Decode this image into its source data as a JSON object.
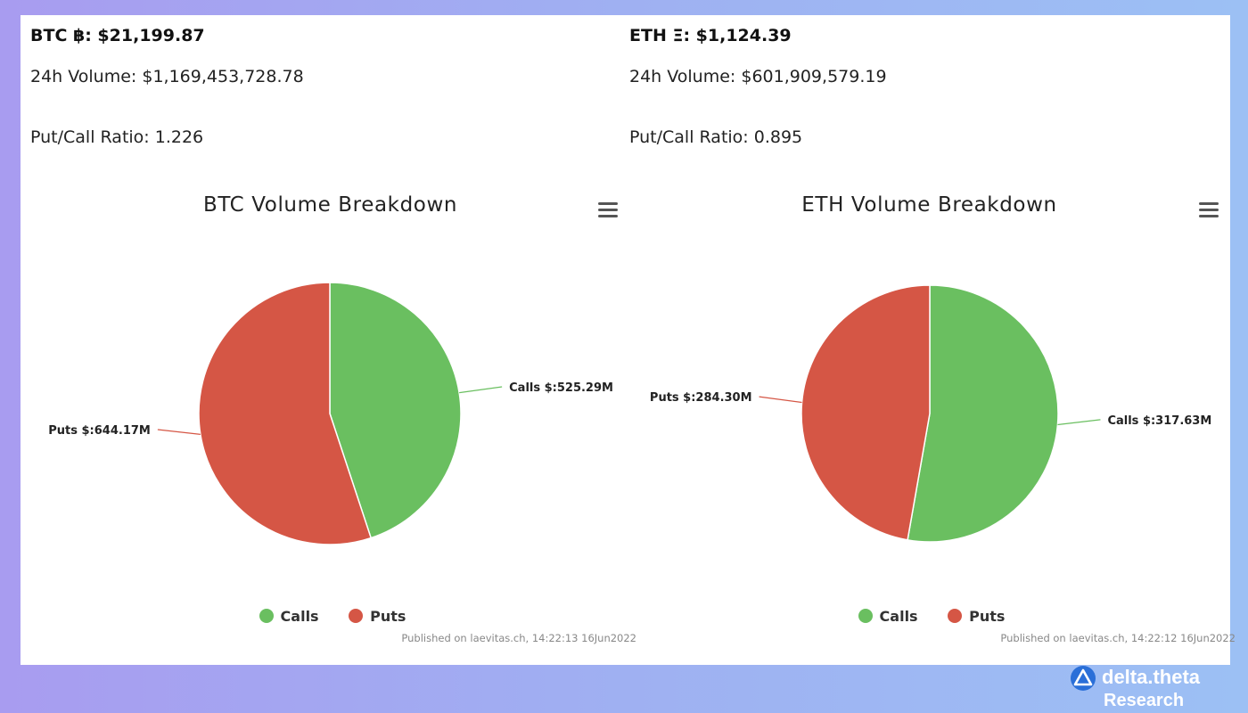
{
  "btc": {
    "price_line": "BTC ฿: $21,199.87",
    "volume_line": "24h Volume: $1,169,453,728.78",
    "ratio_line": "Put/Call Ratio: 1.226",
    "credits": "Published on laevitas.ch, 14:22:13 16Jun2022"
  },
  "eth": {
    "price_line": "ETH Ξ: $1,124.39",
    "volume_line": "24h Volume: $601,909,579.19",
    "ratio_line": "Put/Call Ratio: 0.895",
    "credits": "Published on laevitas.ch, 14:22:12 16Jun2022"
  },
  "legend": {
    "calls": "Calls",
    "puts": "Puts"
  },
  "colors": {
    "calls": "#6abf60",
    "puts": "#d55645"
  },
  "brand": {
    "name": "delta.theta",
    "sub": "Research",
    "logo_icon": "delta-triangle-icon"
  },
  "chart_data": [
    {
      "type": "pie",
      "title": "BTC Volume Breakdown",
      "slices": [
        {
          "name": "Calls",
          "value": 525.29,
          "label": "Calls $:525.29M"
        },
        {
          "name": "Puts",
          "value": 644.17,
          "label": "Puts $:644.17M"
        }
      ],
      "legend": [
        "Calls",
        "Puts"
      ],
      "legend_position": "bottom-center"
    },
    {
      "type": "pie",
      "title": "ETH Volume Breakdown",
      "slices": [
        {
          "name": "Calls",
          "value": 317.63,
          "label": "Calls $:317.63M"
        },
        {
          "name": "Puts",
          "value": 284.3,
          "label": "Puts $:284.30M"
        }
      ],
      "legend": [
        "Calls",
        "Puts"
      ],
      "legend_position": "bottom-center"
    }
  ]
}
